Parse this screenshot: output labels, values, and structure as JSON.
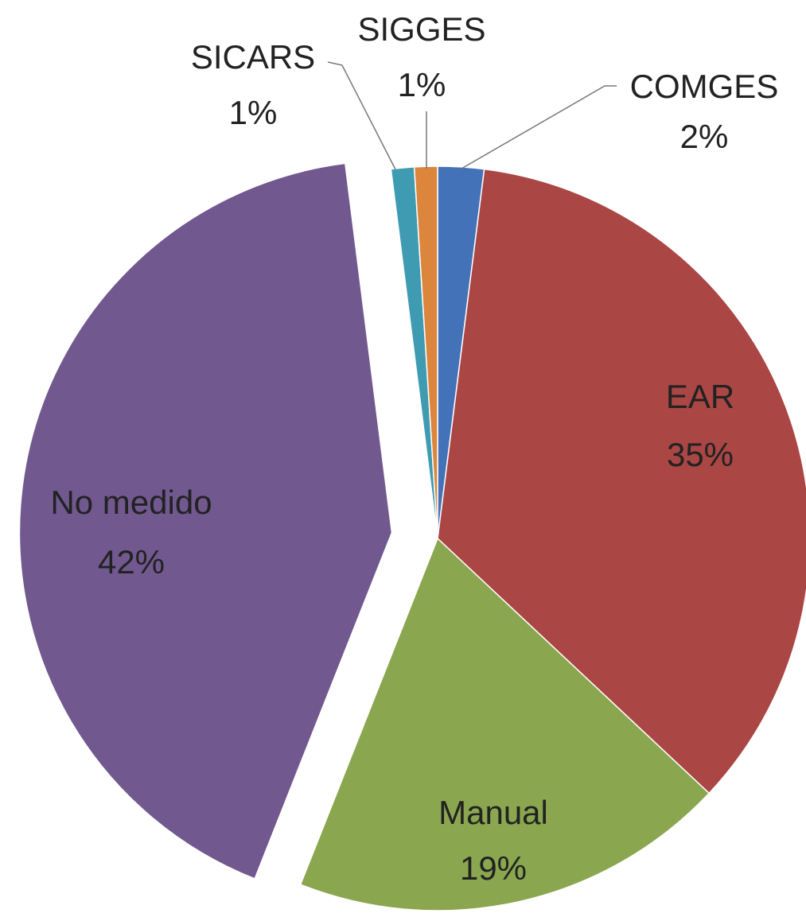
{
  "chart_data": {
    "type": "pie",
    "categories": [
      "COMGES",
      "EAR",
      "Manual",
      "No medido",
      "SICARS",
      "SIGGES"
    ],
    "values": [
      2,
      35,
      19,
      42,
      1,
      1
    ],
    "value_labels": [
      "2%",
      "35%",
      "19%",
      "42%",
      "1%",
      "1%"
    ],
    "colors": [
      "#4472b8",
      "#aa4644",
      "#8aa74f",
      "#71588f",
      "#3f9bb2",
      "#dc853d"
    ],
    "exploded": "No medido"
  }
}
